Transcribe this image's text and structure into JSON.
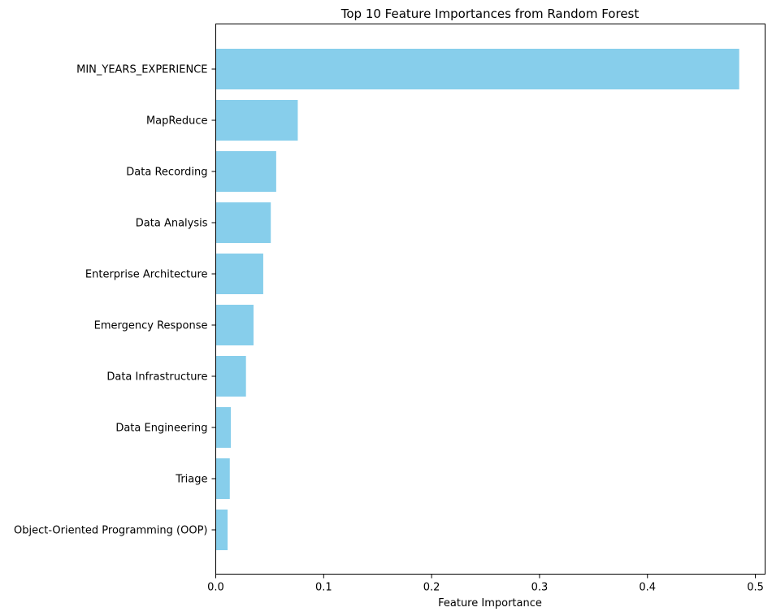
{
  "chart_data": {
    "type": "bar",
    "orientation": "horizontal",
    "title": "Top 10 Feature Importances from Random Forest",
    "xlabel": "Feature Importance",
    "ylabel": "",
    "categories": [
      "MIN_YEARS_EXPERIENCE",
      "MapReduce",
      "Data Recording",
      "Data Analysis",
      "Enterprise Architecture",
      "Emergency Response",
      "Data Infrastructure",
      "Data Engineering",
      "Triage",
      "Object-Oriented Programming (OOP)"
    ],
    "values": [
      0.485,
      0.076,
      0.056,
      0.051,
      0.044,
      0.035,
      0.028,
      0.014,
      0.013,
      0.011
    ],
    "xlim": [
      0,
      0.509
    ],
    "xticks": [
      0.0,
      0.1,
      0.2,
      0.3,
      0.4,
      0.5
    ],
    "xtick_labels": [
      "0.0",
      "0.1",
      "0.2",
      "0.3",
      "0.4",
      "0.5"
    ],
    "bar_color": "#87ceeb",
    "grid": false,
    "legend": "none"
  }
}
